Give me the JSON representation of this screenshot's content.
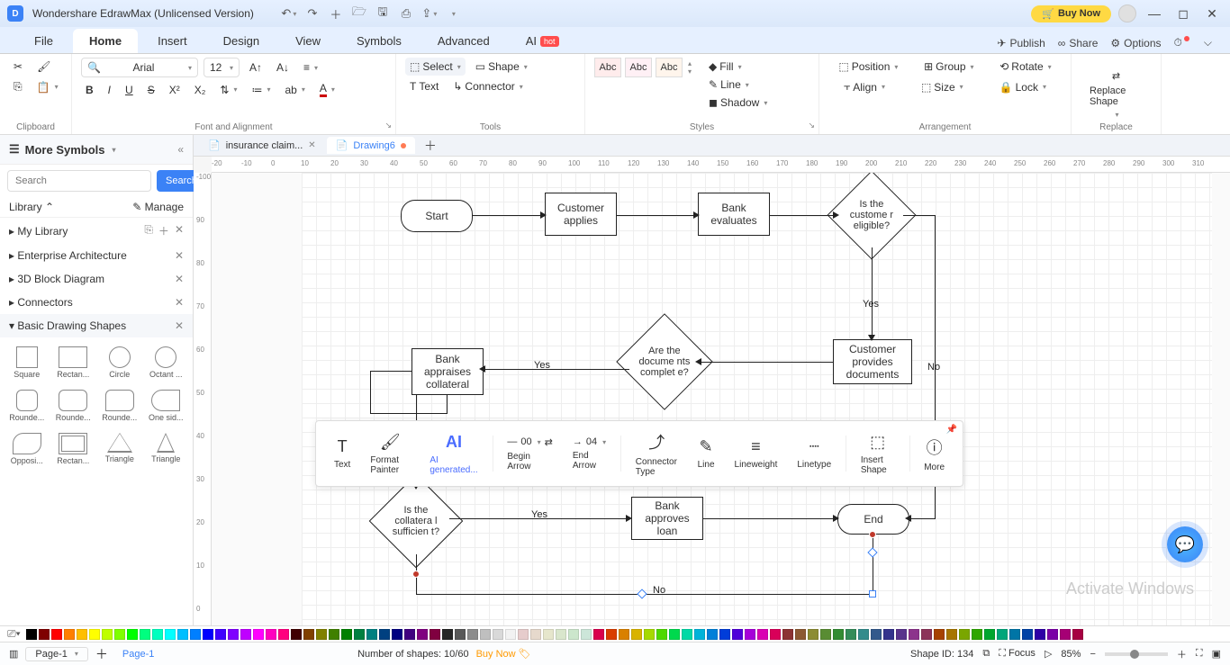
{
  "titlebar": {
    "title": "Wondershare EdrawMax (Unlicensed Version)",
    "buy_now": "Buy Now"
  },
  "main_tabs": {
    "items": [
      "File",
      "Home",
      "Insert",
      "Design",
      "View",
      "Symbols",
      "Advanced",
      "AI"
    ],
    "active": "Home",
    "hot_label": "hot",
    "right": {
      "publish": "Publish",
      "share": "Share",
      "options": "Options"
    }
  },
  "ribbon": {
    "clipboard_label": "Clipboard",
    "font_label": "Font and Alignment",
    "font_name": "Arial",
    "font_size": "12",
    "tools_label": "Tools",
    "select": "Select",
    "shape": "Shape",
    "text": "Text",
    "connector": "Connector",
    "styles_label": "Styles",
    "swatch": "Abc",
    "fill": "Fill",
    "line": "Line",
    "shadow": "Shadow",
    "arrangement_label": "Arrangement",
    "position": "Position",
    "align": "Align",
    "group": "Group",
    "size": "Size",
    "rotate": "Rotate",
    "lock": "Lock",
    "replace_label": "Replace",
    "replace_shape": "Replace Shape"
  },
  "left_panel": {
    "header": "More Symbols",
    "search_placeholder": "Search",
    "search_btn": "Search",
    "library_label": "Library",
    "manage": "Manage",
    "cats": [
      "My Library",
      "Enterprise Architecture",
      "3D Block Diagram",
      "Connectors",
      "Basic Drawing Shapes"
    ],
    "shapes": [
      "Square",
      "Rectan...",
      "Circle",
      "Octant ...",
      "Rounde...",
      "Rounde...",
      "Rounde...",
      "One sid...",
      "Opposi...",
      "Rectan...",
      "Triangle",
      "Triangle"
    ]
  },
  "doc_tabs": {
    "tab1": "insurance claim...",
    "tab2": "Drawing6"
  },
  "ruler": {
    "h_ticks": [
      "-20",
      "-10",
      "0",
      "10",
      "20",
      "30",
      "40",
      "50",
      "60",
      "70",
      "80",
      "90",
      "100",
      "110",
      "120",
      "130",
      "140",
      "150",
      "160",
      "170",
      "180",
      "190",
      "200",
      "210",
      "220",
      "230",
      "240",
      "250",
      "260",
      "270",
      "280",
      "290",
      "300",
      "310"
    ],
    "v_ticks": [
      "-100",
      "90",
      "80",
      "70",
      "60",
      "50",
      "40",
      "30",
      "20",
      "10",
      "0"
    ]
  },
  "flowchart": {
    "nodes": {
      "start": "Start",
      "applies": "Customer applies",
      "evaluates": "Bank evaluates",
      "eligible": "Is the custome r eligible?",
      "provides": "Customer provides documents",
      "complete": "Are the docume nts complet e?",
      "appraises": "Bank appraises collateral",
      "sufficient": "Is the collatera l sufficien t?",
      "approves": "Bank approves loan",
      "end": "End"
    },
    "labels": {
      "yes": "Yes",
      "no": "No"
    }
  },
  "float_toolbar": {
    "text": "Text",
    "format_painter": "Format Painter",
    "ai": "AI generated...",
    "begin_arrow": "Begin Arrow",
    "end_arrow": "End Arrow",
    "begin_val": "00",
    "end_val": "04",
    "connector_type": "Connector Type",
    "line": "Line",
    "lineweight": "Lineweight",
    "linetype": "Linetype",
    "insert_shape": "Insert Shape",
    "more": "More"
  },
  "watermark": "Activate Windows",
  "color_bar": {
    "colors": [
      "#000000",
      "#7f0000",
      "#ff0000",
      "#ff7f00",
      "#ffbf00",
      "#ffff00",
      "#bfff00",
      "#7fff00",
      "#00ff00",
      "#00ff7f",
      "#00ffbf",
      "#00ffff",
      "#00bfff",
      "#007fff",
      "#0000ff",
      "#3f00ff",
      "#7f00ff",
      "#bf00ff",
      "#ff00ff",
      "#ff00bf",
      "#ff007f",
      "#400000",
      "#804000",
      "#808000",
      "#408000",
      "#008000",
      "#008040",
      "#008080",
      "#004080",
      "#000080",
      "#400080",
      "#800080",
      "#800040",
      "#262626",
      "#595959",
      "#8c8c8c",
      "#bfbfbf",
      "#d9d9d9",
      "#f2f2f2",
      "#e6cccc",
      "#e6d9cc",
      "#e6e6cc",
      "#d9e6cc",
      "#cce6cc",
      "#cce6d9",
      "#d9004d",
      "#d93d00",
      "#d98000",
      "#d9b300",
      "#a6d900",
      "#4dd900",
      "#00d94d",
      "#00d9a6",
      "#00b3d9",
      "#0080d9",
      "#003dd9",
      "#4d00d9",
      "#a600d9",
      "#d900b3",
      "#d90059",
      "#8c3333",
      "#8c5933",
      "#8c8c33",
      "#598c33",
      "#338c33",
      "#338c59",
      "#338c8c",
      "#33598c",
      "#33338c",
      "#59338c",
      "#8c338c",
      "#8c3359",
      "#a64200",
      "#a67500",
      "#7aa600",
      "#2ea600",
      "#00a62e",
      "#00a67a",
      "#0075a6",
      "#0042a6",
      "#2e00a6",
      "#7a00a6",
      "#a60075",
      "#a60042"
    ]
  },
  "status": {
    "page_sel": "Page-1",
    "page_link": "Page-1",
    "shape_count": "Number of shapes: 10/60",
    "buy": "Buy Now",
    "shape_id": "Shape ID: 134",
    "focus": "Focus",
    "zoom": "85%"
  }
}
